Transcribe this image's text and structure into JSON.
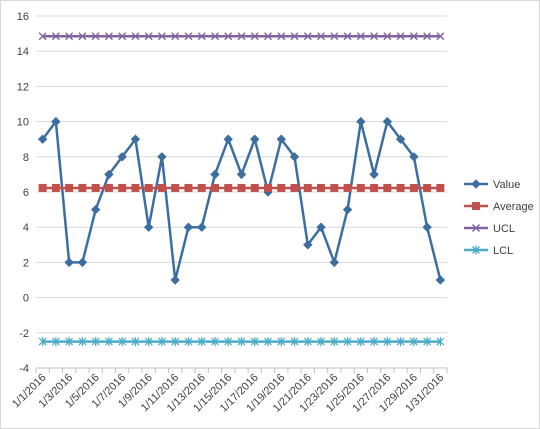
{
  "chart_data": {
    "type": "line",
    "title": "",
    "xlabel": "",
    "ylabel": "",
    "ylim": [
      -4,
      16
    ],
    "y_ticks": [
      -4,
      -2,
      0,
      2,
      4,
      6,
      8,
      10,
      12,
      14,
      16
    ],
    "grid": "horizontal",
    "legend_position": "right",
    "categories": [
      "1/1/2016",
      "1/2/2016",
      "1/3/2016",
      "1/4/2016",
      "1/5/2016",
      "1/6/2016",
      "1/7/2016",
      "1/8/2016",
      "1/9/2016",
      "1/10/2016",
      "1/11/2016",
      "1/12/2016",
      "1/13/2016",
      "1/14/2016",
      "1/15/2016",
      "1/16/2016",
      "1/17/2016",
      "1/18/2016",
      "1/19/2016",
      "1/20/2016",
      "1/21/2016",
      "1/22/2016",
      "1/23/2016",
      "1/24/2016",
      "1/25/2016",
      "1/26/2016",
      "1/27/2016",
      "1/28/2016",
      "1/29/2016",
      "1/30/2016",
      "1/31/2016"
    ],
    "x_tick_labels": [
      "1/1/2016",
      "1/3/2016",
      "1/5/2016",
      "1/7/2016",
      "1/9/2016",
      "1/11/2016",
      "1/13/2016",
      "1/15/2016",
      "1/17/2016",
      "1/19/2016",
      "1/21/2016",
      "1/23/2016",
      "1/25/2016",
      "1/27/2016",
      "1/29/2016",
      "1/31/2016"
    ],
    "series": [
      {
        "name": "Value",
        "color": "#3c6ea1",
        "marker": "diamond",
        "values": [
          9,
          10,
          2,
          2,
          5,
          7,
          8,
          9,
          4,
          8,
          1,
          4,
          4,
          7,
          9,
          7,
          9,
          6,
          9,
          8,
          3,
          4,
          2,
          5,
          10,
          7,
          10,
          9,
          8,
          4,
          1
        ]
      },
      {
        "name": "Average",
        "color": "#c0504d",
        "marker": "square",
        "values": [
          6.23,
          6.23,
          6.23,
          6.23,
          6.23,
          6.23,
          6.23,
          6.23,
          6.23,
          6.23,
          6.23,
          6.23,
          6.23,
          6.23,
          6.23,
          6.23,
          6.23,
          6.23,
          6.23,
          6.23,
          6.23,
          6.23,
          6.23,
          6.23,
          6.23,
          6.23,
          6.23,
          6.23,
          6.23,
          6.23,
          6.23
        ]
      },
      {
        "name": "UCL",
        "color": "#8064a2",
        "marker": "x",
        "values": [
          14.85,
          14.85,
          14.85,
          14.85,
          14.85,
          14.85,
          14.85,
          14.85,
          14.85,
          14.85,
          14.85,
          14.85,
          14.85,
          14.85,
          14.85,
          14.85,
          14.85,
          14.85,
          14.85,
          14.85,
          14.85,
          14.85,
          14.85,
          14.85,
          14.85,
          14.85,
          14.85,
          14.85,
          14.85,
          14.85,
          14.85
        ]
      },
      {
        "name": "LCL",
        "color": "#4bacc6",
        "marker": "star",
        "values": [
          -2.5,
          -2.5,
          -2.5,
          -2.5,
          -2.5,
          -2.5,
          -2.5,
          -2.5,
          -2.5,
          -2.5,
          -2.5,
          -2.5,
          -2.5,
          -2.5,
          -2.5,
          -2.5,
          -2.5,
          -2.5,
          -2.5,
          -2.5,
          -2.5,
          -2.5,
          -2.5,
          -2.5,
          -2.5,
          -2.5,
          -2.5,
          -2.5,
          -2.5,
          -2.5,
          -2.5
        ]
      }
    ]
  }
}
